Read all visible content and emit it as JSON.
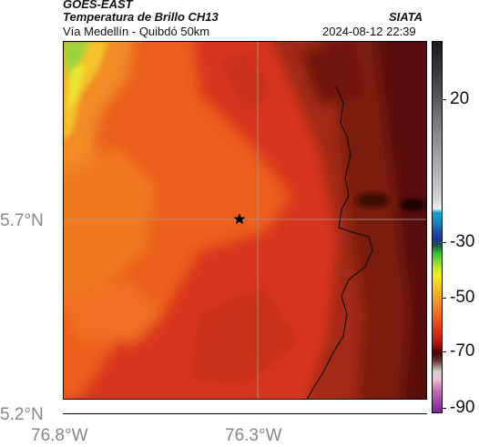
{
  "header": {
    "satellite": "GOES-EAST",
    "product": "Temperatura de Brillo CH13",
    "region": "Vía Medellín - Quibdó 50km",
    "source": "SIATA",
    "datetime": "2024-08-12 22:39"
  },
  "map": {
    "lat_labels": [
      "5.7°N",
      "5.2°N"
    ],
    "lon_labels": [
      "76.8°W",
      "76.3°W"
    ],
    "marker": "station-marker"
  },
  "colorbar": {
    "labels": [
      "20",
      "-30",
      "-50",
      "-70",
      "-90"
    ],
    "palette_colors": [
      "#2a2a2a",
      "#c8c8c8",
      "#1a9fd0",
      "#2030a0",
      "#30c030",
      "#f0f020",
      "#f08020",
      "#e02010",
      "#400000",
      "#d0a0c0",
      "#8020a0"
    ]
  }
}
